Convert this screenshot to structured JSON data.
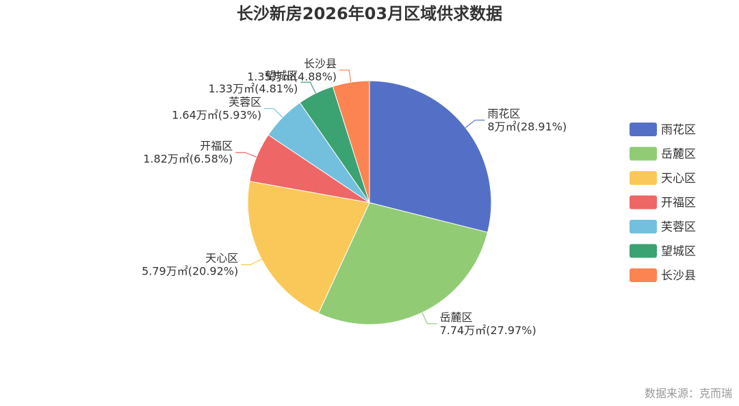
{
  "chart_data": {
    "type": "pie",
    "title": "长沙新房2026年03月区域供求数据",
    "unit": "万㎡",
    "slices": [
      {
        "name": "雨花区",
        "value": 8,
        "value_label": "8万㎡",
        "percent_label": "28.91%",
        "color": "#5470c6"
      },
      {
        "name": "岳麓区",
        "value": 7.74,
        "value_label": "7.74万㎡",
        "percent_label": "27.97%",
        "color": "#91cc75"
      },
      {
        "name": "天心区",
        "value": 5.79,
        "value_label": "5.79万㎡",
        "percent_label": "20.92%",
        "color": "#fac858"
      },
      {
        "name": "开福区",
        "value": 1.82,
        "value_label": "1.82万㎡",
        "percent_label": "6.58%",
        "color": "#ee6666"
      },
      {
        "name": "芙蓉区",
        "value": 1.64,
        "value_label": "1.64万㎡",
        "percent_label": "5.93%",
        "color": "#73c0de"
      },
      {
        "name": "望城区",
        "value": 1.33,
        "value_label": "1.33万㎡",
        "percent_label": "4.81%",
        "color": "#3ba272"
      },
      {
        "name": "长沙县",
        "value": 1.35,
        "value_label": "1.35万㎡",
        "percent_label": "4.88%",
        "color": "#fc8452"
      }
    ],
    "legend_position": "right"
  },
  "source": "数据来源：克而瑞"
}
